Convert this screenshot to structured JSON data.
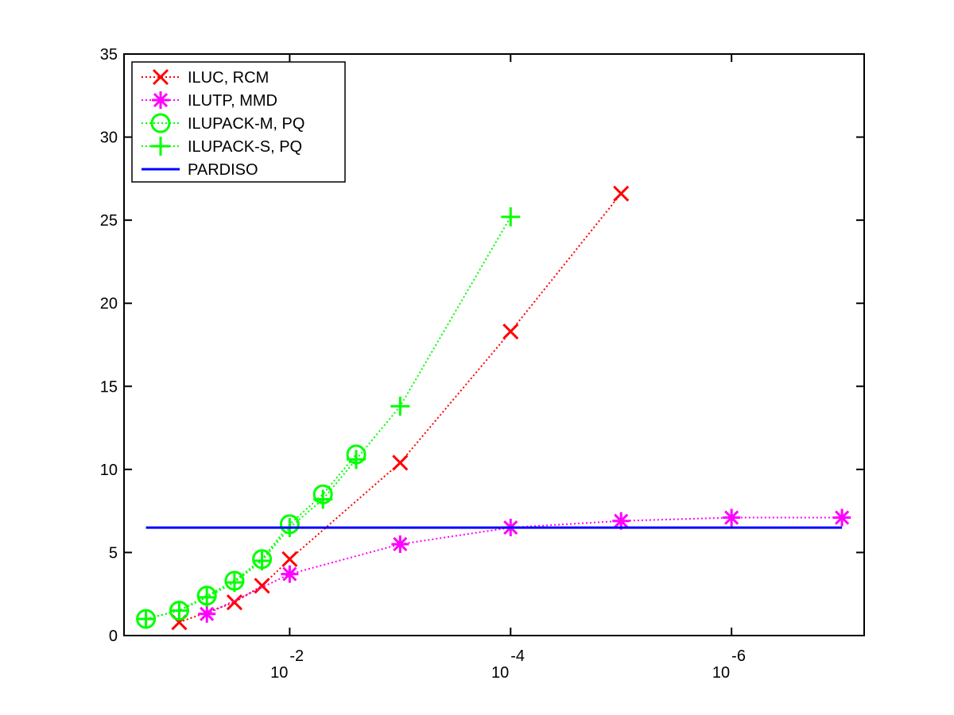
{
  "chart_data": {
    "type": "line",
    "title": "",
    "xlabel": "",
    "ylabel": "",
    "x_scale": "log",
    "x_reversed": true,
    "xlim": [
      0.316,
      6.3e-08
    ],
    "ylim": [
      0,
      35
    ],
    "yticks": [
      0,
      5,
      10,
      15,
      20,
      25,
      30,
      35
    ],
    "xticks": [
      {
        "value": 0.01,
        "base": "10",
        "exp": "-2"
      },
      {
        "value": 0.0001,
        "base": "10",
        "exp": "-4"
      },
      {
        "value": 1e-06,
        "base": "10",
        "exp": "-6"
      }
    ],
    "grid": false,
    "legend_position": "top-left",
    "series": [
      {
        "name": "ILUC, RCM",
        "color": "#ff0000",
        "marker": "x",
        "line": "dotted",
        "points": [
          [
            0.1,
            0.8
          ],
          [
            0.0316,
            2.0
          ],
          [
            0.0178,
            3.0
          ],
          [
            0.01,
            4.6
          ],
          [
            0.001,
            10.4
          ],
          [
            0.0001,
            18.3
          ],
          [
            1e-05,
            26.6
          ]
        ]
      },
      {
        "name": "ILUTP, MMD",
        "color": "#ff00ff",
        "marker": "asterisk",
        "line": "dotted",
        "points": [
          [
            0.0562,
            1.3
          ],
          [
            0.01,
            3.7
          ],
          [
            0.001,
            5.5
          ],
          [
            0.0001,
            6.5
          ],
          [
            1e-05,
            6.9
          ],
          [
            1e-06,
            7.1
          ],
          [
            1e-07,
            7.1
          ]
        ]
      },
      {
        "name": "ILUPACK-M, PQ",
        "color": "#00ff00",
        "marker": "circle",
        "line": "dotted",
        "points": [
          [
            0.2,
            1.0
          ],
          [
            0.1,
            1.5
          ],
          [
            0.0562,
            2.4
          ],
          [
            0.0316,
            3.3
          ],
          [
            0.0178,
            4.6
          ],
          [
            0.01,
            6.7
          ],
          [
            0.005,
            8.5
          ],
          [
            0.0025,
            10.9
          ]
        ]
      },
      {
        "name": "ILUPACK-S, PQ",
        "color": "#00ff00",
        "marker": "plus",
        "line": "dotted",
        "points": [
          [
            0.2,
            1.0
          ],
          [
            0.1,
            1.5
          ],
          [
            0.0562,
            2.3
          ],
          [
            0.0316,
            3.2
          ],
          [
            0.0178,
            4.5
          ],
          [
            0.01,
            6.5
          ],
          [
            0.005,
            8.2
          ],
          [
            0.0025,
            10.6
          ],
          [
            0.001,
            13.8
          ],
          [
            0.0001,
            25.2
          ]
        ]
      },
      {
        "name": "PARDISO",
        "color": "#0000ff",
        "marker": "none",
        "line": "solid",
        "points": [
          [
            0.2,
            6.5
          ],
          [
            1e-07,
            6.5
          ]
        ]
      }
    ]
  }
}
